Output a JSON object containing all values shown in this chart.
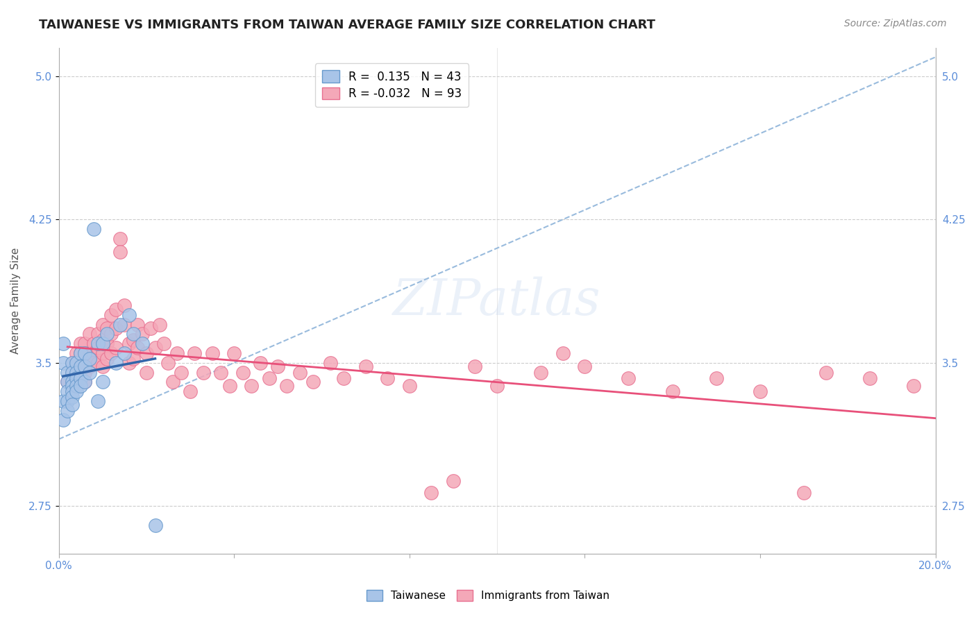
{
  "title": "TAIWANESE VS IMMIGRANTS FROM TAIWAN AVERAGE FAMILY SIZE CORRELATION CHART",
  "source": "Source: ZipAtlas.com",
  "xlabel": "",
  "ylabel": "Average Family Size",
  "xlim": [
    0.0,
    0.2
  ],
  "ylim": [
    2.5,
    5.15
  ],
  "yticks": [
    2.75,
    3.5,
    4.25,
    5.0
  ],
  "xticks": [
    0.0,
    0.04,
    0.08,
    0.12,
    0.16,
    0.2
  ],
  "xtick_labels": [
    "0.0%",
    "",
    "",
    "",
    "",
    "20.0%"
  ],
  "ytick_color": "#5b8dd9",
  "background_color": "#ffffff",
  "grid_color": "#cccccc",
  "watermark": "ZIPatlas",
  "blue_R": 0.135,
  "blue_N": 43,
  "pink_R": -0.032,
  "pink_N": 93,
  "blue_scatter_x": [
    0.001,
    0.001,
    0.001,
    0.001,
    0.002,
    0.002,
    0.002,
    0.002,
    0.002,
    0.003,
    0.003,
    0.003,
    0.003,
    0.003,
    0.003,
    0.003,
    0.004,
    0.004,
    0.004,
    0.004,
    0.004,
    0.005,
    0.005,
    0.005,
    0.005,
    0.006,
    0.006,
    0.006,
    0.007,
    0.007,
    0.008,
    0.009,
    0.009,
    0.01,
    0.01,
    0.011,
    0.013,
    0.014,
    0.015,
    0.016,
    0.017,
    0.019,
    0.022
  ],
  "blue_scatter_y": [
    3.3,
    3.5,
    3.6,
    3.2,
    3.45,
    3.4,
    3.35,
    3.3,
    3.25,
    3.5,
    3.45,
    3.4,
    3.38,
    3.35,
    3.32,
    3.28,
    3.5,
    3.45,
    3.42,
    3.38,
    3.35,
    3.55,
    3.48,
    3.42,
    3.38,
    3.55,
    3.48,
    3.4,
    3.52,
    3.45,
    4.2,
    3.6,
    3.3,
    3.6,
    3.4,
    3.65,
    3.5,
    3.7,
    3.55,
    3.75,
    3.65,
    3.6,
    2.65
  ],
  "pink_scatter_x": [
    0.002,
    0.003,
    0.003,
    0.004,
    0.004,
    0.004,
    0.005,
    0.005,
    0.005,
    0.005,
    0.006,
    0.006,
    0.006,
    0.006,
    0.006,
    0.007,
    0.007,
    0.007,
    0.008,
    0.008,
    0.008,
    0.009,
    0.009,
    0.009,
    0.01,
    0.01,
    0.01,
    0.01,
    0.011,
    0.011,
    0.011,
    0.012,
    0.012,
    0.012,
    0.013,
    0.013,
    0.013,
    0.014,
    0.014,
    0.015,
    0.015,
    0.016,
    0.016,
    0.017,
    0.017,
    0.018,
    0.018,
    0.019,
    0.02,
    0.02,
    0.021,
    0.022,
    0.023,
    0.024,
    0.025,
    0.026,
    0.027,
    0.028,
    0.03,
    0.031,
    0.033,
    0.035,
    0.037,
    0.039,
    0.04,
    0.042,
    0.044,
    0.046,
    0.048,
    0.05,
    0.052,
    0.055,
    0.058,
    0.062,
    0.065,
    0.07,
    0.075,
    0.08,
    0.085,
    0.09,
    0.095,
    0.1,
    0.11,
    0.115,
    0.12,
    0.13,
    0.14,
    0.15,
    0.16,
    0.17,
    0.175,
    0.185,
    0.195
  ],
  "pink_scatter_y": [
    3.4,
    3.5,
    3.45,
    3.55,
    3.5,
    3.45,
    3.6,
    3.55,
    3.5,
    3.45,
    3.6,
    3.55,
    3.5,
    3.45,
    3.4,
    3.65,
    3.55,
    3.48,
    3.6,
    3.55,
    3.5,
    3.65,
    3.58,
    3.5,
    3.7,
    3.62,
    3.55,
    3.48,
    3.68,
    3.6,
    3.52,
    3.75,
    3.65,
    3.55,
    3.78,
    3.68,
    3.58,
    4.15,
    4.08,
    3.8,
    3.7,
    3.6,
    3.5,
    3.62,
    3.52,
    3.7,
    3.58,
    3.65,
    3.55,
    3.45,
    3.68,
    3.58,
    3.7,
    3.6,
    3.5,
    3.4,
    3.55,
    3.45,
    3.35,
    3.55,
    3.45,
    3.55,
    3.45,
    3.38,
    3.55,
    3.45,
    3.38,
    3.5,
    3.42,
    3.48,
    3.38,
    3.45,
    3.4,
    3.5,
    3.42,
    3.48,
    3.42,
    3.38,
    2.82,
    2.88,
    3.48,
    3.38,
    3.45,
    3.55,
    3.48,
    3.42,
    3.35,
    3.42,
    3.35,
    2.82,
    3.45,
    3.42,
    3.38
  ],
  "blue_color": "#a8c4e8",
  "blue_edge_color": "#6699cc",
  "pink_color": "#f4a8b8",
  "pink_edge_color": "#e87090",
  "blue_line_color": "#3366aa",
  "pink_line_color": "#e8507a",
  "dashed_line_color": "#99bbdd",
  "legend_box_color": "#ffffff",
  "legend_border_color": "#cccccc",
  "title_fontsize": 13,
  "axis_label_fontsize": 11,
  "tick_fontsize": 11,
  "legend_fontsize": 12,
  "source_fontsize": 10
}
